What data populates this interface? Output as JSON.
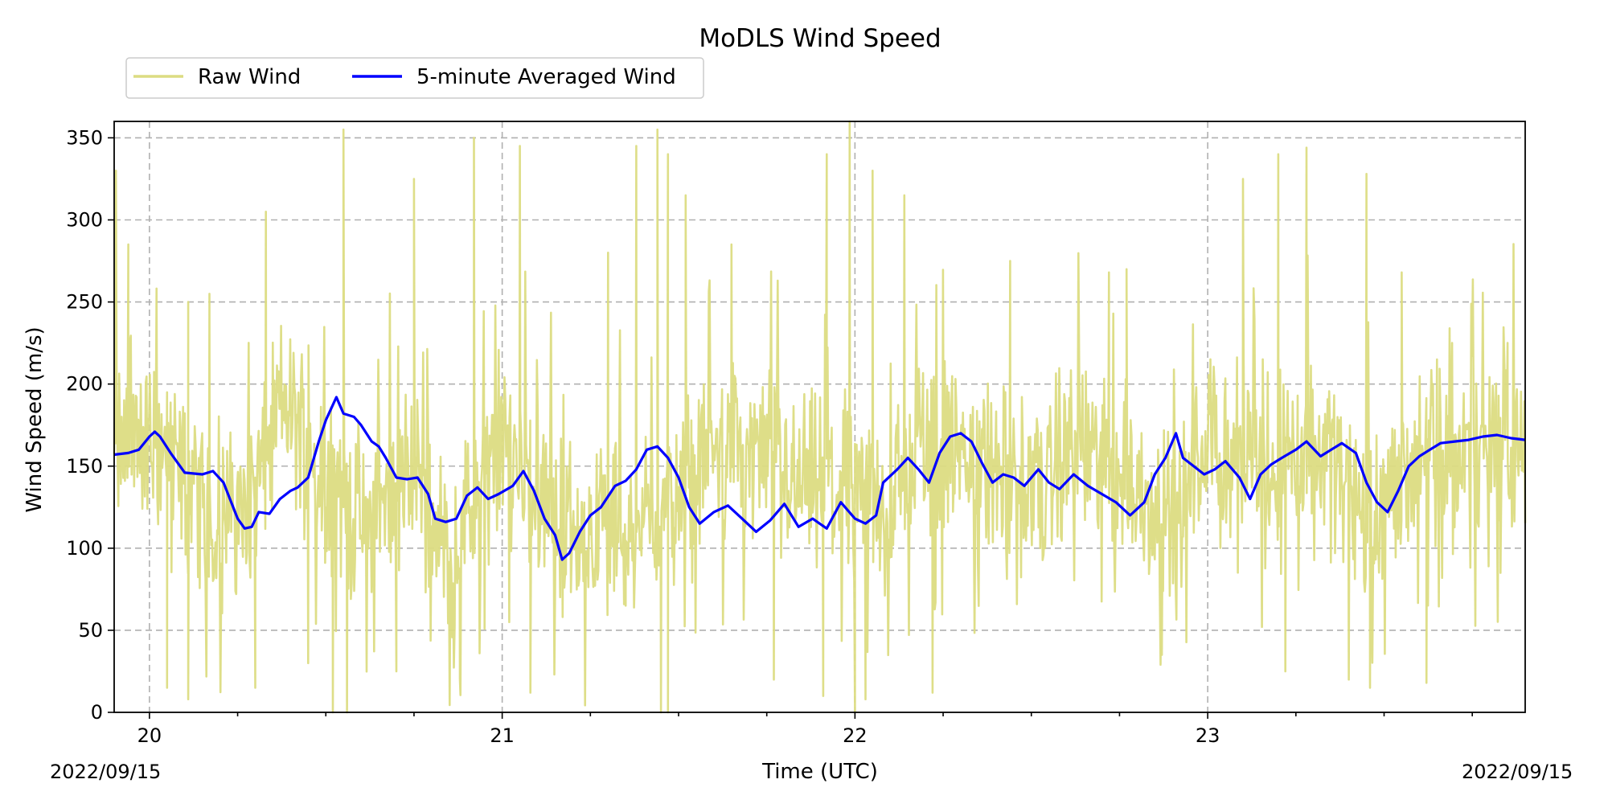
{
  "chart_data": {
    "type": "line",
    "title": "MoDLS Wind Speed",
    "xlabel": "Time (UTC)",
    "ylabel": "Wind Speed (m/s)",
    "x_unit": "hour (UTC)",
    "xlim": [
      19.9,
      23.9
    ],
    "ylim": [
      0,
      360
    ],
    "x_major_ticks": [
      20,
      21,
      22,
      23
    ],
    "x_major_tick_labels": [
      "20",
      "21",
      "22",
      "23"
    ],
    "x_minor_ticks": [
      20.25,
      20.5,
      20.75,
      21.25,
      21.5,
      21.75,
      22.25,
      22.5,
      22.75,
      23.25,
      23.5,
      23.75
    ],
    "y_ticks": [
      0,
      50,
      100,
      150,
      200,
      250,
      300,
      350
    ],
    "y_tick_labels": [
      "0",
      "50",
      "100",
      "150",
      "200",
      "250",
      "300",
      "350"
    ],
    "date_labels": [
      "2022/09/15",
      "2022/09/15"
    ],
    "grid": true,
    "legend": {
      "placement": "above plot, top-left",
      "columns": 2
    },
    "series": [
      {
        "name": "Raw Wind",
        "color": "#dcdc82",
        "style": "noisy line",
        "x_range": [
          19.9,
          23.9
        ],
        "mean_envelope": [
          [
            19.9,
            160
          ],
          [
            20.0,
            168
          ],
          [
            20.1,
            145
          ],
          [
            20.2,
            115
          ],
          [
            20.3,
            135
          ],
          [
            20.38,
            190
          ],
          [
            20.5,
            145
          ],
          [
            20.6,
            115
          ],
          [
            20.75,
            145
          ],
          [
            20.85,
            95
          ],
          [
            20.95,
            140
          ],
          [
            21.02,
            162
          ],
          [
            21.15,
            115
          ],
          [
            21.3,
            112
          ],
          [
            21.5,
            125
          ],
          [
            21.65,
            170
          ],
          [
            21.8,
            142
          ],
          [
            22.0,
            135
          ],
          [
            22.1,
            125
          ],
          [
            22.17,
            165
          ],
          [
            22.4,
            150
          ],
          [
            22.5,
            132
          ],
          [
            22.6,
            160
          ],
          [
            22.75,
            150
          ],
          [
            22.9,
            110
          ],
          [
            23.0,
            158
          ],
          [
            23.2,
            155
          ],
          [
            23.35,
            158
          ],
          [
            23.45,
            120
          ],
          [
            23.6,
            158
          ],
          [
            23.9,
            165
          ]
        ],
        "noise_spread": 55,
        "peaks": [
          [
            19.905,
            330
          ],
          [
            19.94,
            285
          ],
          [
            20.05,
            195
          ],
          [
            20.11,
            250
          ],
          [
            20.17,
            255
          ],
          [
            20.33,
            305
          ],
          [
            20.55,
            355
          ],
          [
            20.56,
            0
          ],
          [
            20.75,
            325
          ],
          [
            20.92,
            350
          ],
          [
            21.05,
            345
          ],
          [
            21.3,
            280
          ],
          [
            21.38,
            345
          ],
          [
            21.44,
            355
          ],
          [
            21.45,
            0
          ],
          [
            21.47,
            340
          ],
          [
            21.52,
            315
          ],
          [
            21.65,
            285
          ],
          [
            21.92,
            340
          ],
          [
            21.985,
            360
          ],
          [
            22.0,
            0
          ],
          [
            22.05,
            330
          ],
          [
            22.14,
            315
          ],
          [
            22.44,
            275
          ],
          [
            22.72,
            268
          ],
          [
            22.77,
            270
          ],
          [
            23.1,
            325
          ],
          [
            23.2,
            340
          ],
          [
            23.28,
            344
          ],
          [
            23.45,
            328
          ],
          [
            23.55,
            268
          ],
          [
            23.65,
            215
          ],
          [
            23.85,
            225
          ]
        ],
        "dips": [
          [
            20.05,
            15
          ],
          [
            20.11,
            8
          ],
          [
            20.3,
            15
          ],
          [
            20.45,
            30
          ],
          [
            20.52,
            0
          ],
          [
            20.7,
            25
          ],
          [
            20.88,
            20
          ],
          [
            21.02,
            55
          ],
          [
            21.08,
            12
          ],
          [
            21.35,
            65
          ],
          [
            21.47,
            0
          ],
          [
            21.77,
            20
          ],
          [
            21.91,
            10
          ],
          [
            22.03,
            8
          ],
          [
            22.22,
            12
          ],
          [
            22.87,
            35
          ],
          [
            23.22,
            25
          ],
          [
            23.4,
            20
          ],
          [
            23.46,
            15
          ],
          [
            23.62,
            18
          ],
          [
            23.83,
            85
          ]
        ]
      },
      {
        "name": "5-minute Averaged Wind",
        "color": "#0000ff",
        "style": "solid line",
        "points": [
          [
            19.9,
            157
          ],
          [
            19.94,
            158
          ],
          [
            19.97,
            160
          ],
          [
            20.0,
            168
          ],
          [
            20.015,
            171
          ],
          [
            20.03,
            168
          ],
          [
            20.06,
            158
          ],
          [
            20.1,
            146
          ],
          [
            20.15,
            145
          ],
          [
            20.18,
            147
          ],
          [
            20.21,
            140
          ],
          [
            20.25,
            118
          ],
          [
            20.27,
            112
          ],
          [
            20.29,
            113
          ],
          [
            20.31,
            122
          ],
          [
            20.34,
            121
          ],
          [
            20.37,
            130
          ],
          [
            20.4,
            135
          ],
          [
            20.42,
            137
          ],
          [
            20.45,
            143
          ],
          [
            20.48,
            165
          ],
          [
            20.5,
            178
          ],
          [
            20.53,
            192
          ],
          [
            20.55,
            182
          ],
          [
            20.58,
            180
          ],
          [
            20.6,
            175
          ],
          [
            20.63,
            165
          ],
          [
            20.65,
            162
          ],
          [
            20.67,
            155
          ],
          [
            20.7,
            143
          ],
          [
            20.73,
            142
          ],
          [
            20.76,
            143
          ],
          [
            20.79,
            133
          ],
          [
            20.81,
            118
          ],
          [
            20.84,
            116
          ],
          [
            20.87,
            118
          ],
          [
            20.9,
            132
          ],
          [
            20.93,
            137
          ],
          [
            20.96,
            130
          ],
          [
            20.99,
            133
          ],
          [
            21.03,
            138
          ],
          [
            21.06,
            147
          ],
          [
            21.09,
            135
          ],
          [
            21.12,
            118
          ],
          [
            21.15,
            108
          ],
          [
            21.17,
            93
          ],
          [
            21.19,
            97
          ],
          [
            21.22,
            110
          ],
          [
            21.25,
            120
          ],
          [
            21.28,
            125
          ],
          [
            21.32,
            138
          ],
          [
            21.35,
            141
          ],
          [
            21.38,
            148
          ],
          [
            21.41,
            160
          ],
          [
            21.44,
            162
          ],
          [
            21.47,
            155
          ],
          [
            21.5,
            143
          ],
          [
            21.53,
            125
          ],
          [
            21.56,
            115
          ],
          [
            21.6,
            122
          ],
          [
            21.64,
            126
          ],
          [
            21.68,
            118
          ],
          [
            21.72,
            110
          ],
          [
            21.76,
            117
          ],
          [
            21.8,
            127
          ],
          [
            21.84,
            113
          ],
          [
            21.88,
            118
          ],
          [
            21.92,
            112
          ],
          [
            21.96,
            128
          ],
          [
            22.0,
            118
          ],
          [
            22.03,
            115
          ],
          [
            22.06,
            120
          ],
          [
            22.08,
            140
          ],
          [
            22.12,
            148
          ],
          [
            22.15,
            155
          ],
          [
            22.18,
            148
          ],
          [
            22.21,
            140
          ],
          [
            22.24,
            158
          ],
          [
            22.27,
            168
          ],
          [
            22.3,
            170
          ],
          [
            22.33,
            165
          ],
          [
            22.36,
            152
          ],
          [
            22.39,
            140
          ],
          [
            22.42,
            145
          ],
          [
            22.45,
            143
          ],
          [
            22.48,
            138
          ],
          [
            22.52,
            148
          ],
          [
            22.55,
            140
          ],
          [
            22.58,
            136
          ],
          [
            22.62,
            145
          ],
          [
            22.66,
            138
          ],
          [
            22.7,
            133
          ],
          [
            22.74,
            128
          ],
          [
            22.78,
            120
          ],
          [
            22.82,
            128
          ],
          [
            22.85,
            145
          ],
          [
            22.88,
            155
          ],
          [
            22.91,
            170
          ],
          [
            22.93,
            155
          ],
          [
            22.96,
            150
          ],
          [
            22.99,
            145
          ],
          [
            23.02,
            148
          ],
          [
            23.05,
            153
          ],
          [
            23.09,
            143
          ],
          [
            23.12,
            130
          ],
          [
            23.15,
            145
          ],
          [
            23.18,
            151
          ],
          [
            23.21,
            155
          ],
          [
            23.25,
            160
          ],
          [
            23.28,
            165
          ],
          [
            23.32,
            156
          ],
          [
            23.35,
            160
          ],
          [
            23.38,
            164
          ],
          [
            23.42,
            158
          ],
          [
            23.45,
            140
          ],
          [
            23.48,
            128
          ],
          [
            23.51,
            122
          ],
          [
            23.54,
            135
          ],
          [
            23.57,
            150
          ],
          [
            23.6,
            156
          ],
          [
            23.63,
            160
          ],
          [
            23.66,
            164
          ],
          [
            23.7,
            165
          ],
          [
            23.74,
            166
          ],
          [
            23.78,
            168
          ],
          [
            23.82,
            169
          ],
          [
            23.86,
            167
          ],
          [
            23.9,
            166
          ]
        ]
      }
    ]
  }
}
